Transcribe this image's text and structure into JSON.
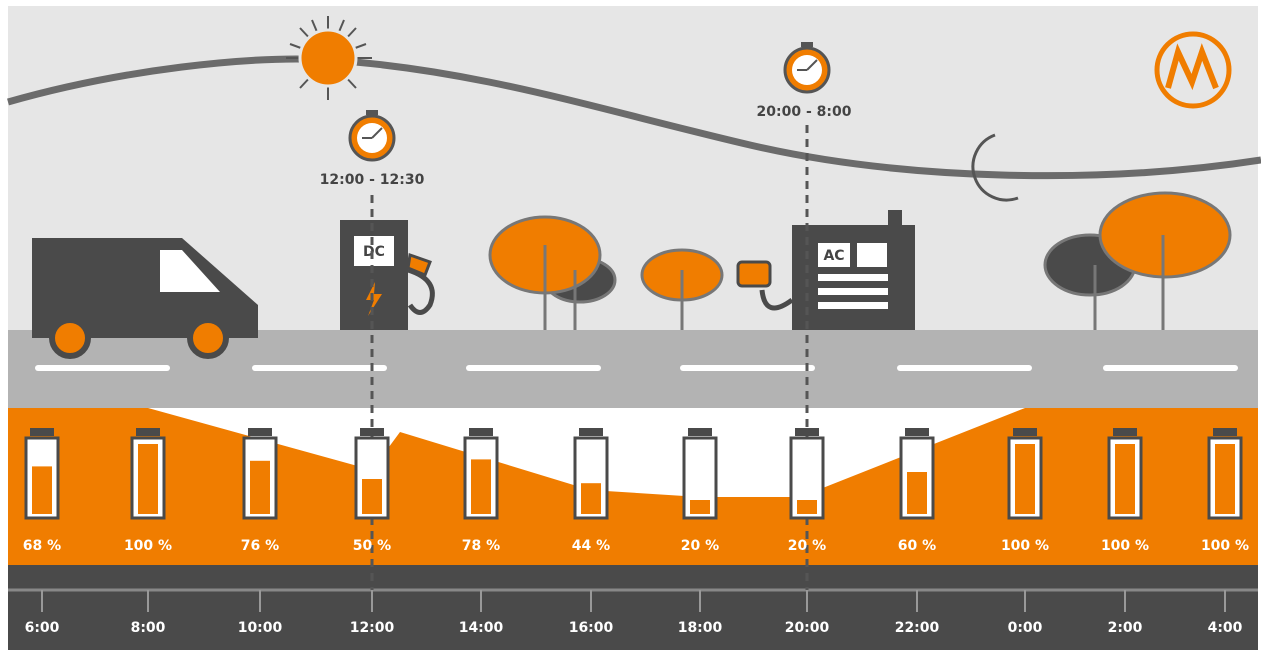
{
  "timers": [
    {
      "label": "12:00 - 12:30"
    },
    {
      "label": "20:00 - 8:00"
    }
  ],
  "chargers": [
    {
      "label": "DC"
    },
    {
      "label": "AC"
    }
  ],
  "batteries": [
    {
      "time": "6:00",
      "charge": 68,
      "charge_label": "68 %"
    },
    {
      "time": "8:00",
      "charge": 100,
      "charge_label": "100 %"
    },
    {
      "time": "10:00",
      "charge": 76,
      "charge_label": "76 %"
    },
    {
      "time": "12:00",
      "charge": 50,
      "charge_label": "50 %"
    },
    {
      "time": "14:00",
      "charge": 78,
      "charge_label": "78 %"
    },
    {
      "time": "16:00",
      "charge": 44,
      "charge_label": "44 %"
    },
    {
      "time": "18:00",
      "charge": 20,
      "charge_label": "20 %"
    },
    {
      "time": "20:00",
      "charge": 20,
      "charge_label": "20 %"
    },
    {
      "time": "22:00",
      "charge": 60,
      "charge_label": "60 %"
    },
    {
      "time": "0:00",
      "charge": 100,
      "charge_label": "100 %"
    },
    {
      "time": "2:00",
      "charge": 100,
      "charge_label": "100 %"
    },
    {
      "time": "4:00",
      "charge": 100,
      "charge_label": "100 %"
    }
  ]
}
